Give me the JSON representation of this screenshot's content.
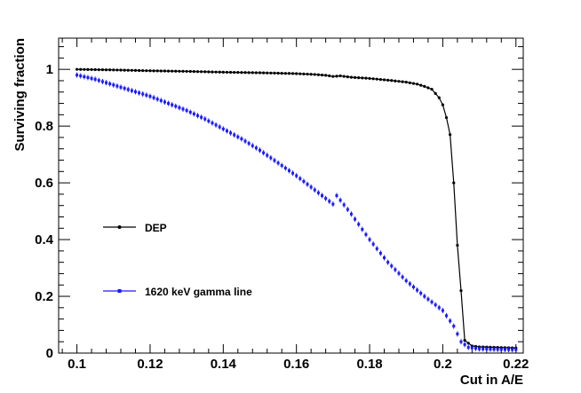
{
  "chart_data": {
    "type": "scatter",
    "xlabel": "Cut in A/E",
    "ylabel": "Surviving fraction",
    "xlim": [
      0.095,
      0.222
    ],
    "ylim": [
      0,
      1.11
    ],
    "x_ticks": [
      0.1,
      0.12,
      0.14,
      0.16,
      0.18,
      0.2,
      0.22
    ],
    "x_tick_labels": [
      "0.1",
      "0.12",
      "0.14",
      "0.16",
      "0.18",
      "0.2",
      "0.22"
    ],
    "y_ticks": [
      0,
      0.2,
      0.4,
      0.6,
      0.8,
      1
    ],
    "y_tick_labels": [
      "0",
      "0.2",
      "0.4",
      "0.6",
      "0.8",
      "1"
    ],
    "grid": false,
    "series": [
      {
        "name": "DEP",
        "color": "#000000",
        "style": "line-with-markers",
        "x": [
          0.1,
          0.11,
          0.12,
          0.13,
          0.14,
          0.15,
          0.16,
          0.165,
          0.168,
          0.17,
          0.172,
          0.175,
          0.18,
          0.185,
          0.19,
          0.193,
          0.195,
          0.197,
          0.198,
          0.199,
          0.2,
          0.201,
          0.202,
          0.203,
          0.204,
          0.205,
          0.206,
          0.208,
          0.21,
          0.215,
          0.22
        ],
        "y": [
          1.0,
          0.998,
          0.995,
          0.993,
          0.99,
          0.988,
          0.985,
          0.982,
          0.979,
          0.975,
          0.977,
          0.972,
          0.968,
          0.962,
          0.955,
          0.948,
          0.94,
          0.93,
          0.915,
          0.9,
          0.875,
          0.83,
          0.77,
          0.6,
          0.38,
          0.22,
          0.045,
          0.025,
          0.022,
          0.02,
          0.018
        ]
      },
      {
        "name": "1620 keV gamma line",
        "color": "#1a1aff",
        "style": "markers-with-error-bars",
        "x": [
          0.1,
          0.105,
          0.11,
          0.115,
          0.12,
          0.125,
          0.13,
          0.135,
          0.14,
          0.145,
          0.15,
          0.155,
          0.16,
          0.165,
          0.17,
          0.171,
          0.175,
          0.18,
          0.185,
          0.19,
          0.195,
          0.2,
          0.203,
          0.205,
          0.207,
          0.21,
          0.215,
          0.22
        ],
        "y": [
          0.98,
          0.965,
          0.945,
          0.925,
          0.905,
          0.88,
          0.855,
          0.825,
          0.79,
          0.755,
          0.715,
          0.67,
          0.625,
          0.575,
          0.525,
          0.555,
          0.49,
          0.4,
          0.32,
          0.255,
          0.2,
          0.15,
          0.095,
          0.04,
          0.02,
          0.015,
          0.013,
          0.012
        ]
      }
    ],
    "legend": [
      {
        "label": "DEP"
      },
      {
        "label": "1620 keV gamma line"
      }
    ]
  }
}
